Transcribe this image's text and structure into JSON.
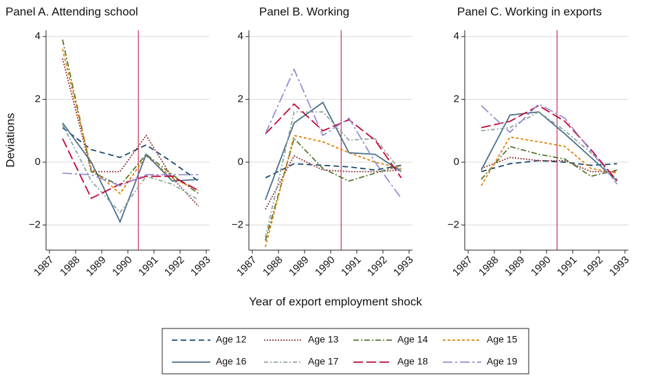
{
  "chart_data": [
    {
      "type": "line",
      "title": "Panel A. Attending school",
      "ylabel": "Deviations",
      "x": [
        1987.5,
        1988.6,
        1989.7,
        1990.7,
        1991.7,
        1992.7
      ],
      "xlim": [
        1987,
        1993
      ],
      "xticks": [
        1987,
        1988,
        1989,
        1990,
        1991,
        1992,
        1993
      ],
      "ylim": [
        -2.8,
        4.2
      ],
      "yticks": [
        {
          "value": -2,
          "label": "−2"
        },
        0,
        2,
        4
      ],
      "grid": true,
      "vline": 1990.4,
      "vline_color": "#c10534",
      "series": [
        {
          "name": "Age 12",
          "color": "#1a476f",
          "dash": "8,5",
          "values": [
            1.1,
            0.4,
            0.15,
            0.55,
            0.0,
            -0.6
          ]
        },
        {
          "name": "Age 13",
          "color": "#90353b",
          "dash": "2,2",
          "values": [
            3.3,
            -0.3,
            -0.3,
            0.85,
            -0.5,
            -1.4
          ]
        },
        {
          "name": "Age 14",
          "color": "#55752f",
          "dash": "8,3,2,3",
          "values": [
            3.9,
            -0.3,
            -0.75,
            0.25,
            -0.4,
            -1.0
          ]
        },
        {
          "name": "Age 15",
          "color": "#e37e00",
          "dash": "4,3",
          "values": [
            3.6,
            -0.2,
            -1.0,
            0.2,
            -0.5,
            -0.9
          ]
        },
        {
          "name": "Age 16",
          "color": "#4a6f8a",
          "dash": "none",
          "values": [
            1.25,
            0.0,
            -1.9,
            0.25,
            -0.6,
            -0.55
          ]
        },
        {
          "name": "Age 17",
          "color": "#8fa39a",
          "dash": "6,3,2,3",
          "values": [
            1.2,
            -0.6,
            -1.6,
            -0.45,
            -0.7,
            -1.2
          ]
        },
        {
          "name": "Age 18",
          "color": "#c10534",
          "dash": "14,5",
          "values": [
            0.75,
            -1.15,
            -0.7,
            -0.45,
            -0.45,
            -0.9
          ]
        },
        {
          "name": "Age 19",
          "color": "#938dd2",
          "dash": "14,4,3,4",
          "values": [
            -0.35,
            -0.4,
            -0.75,
            -0.4,
            -0.4,
            -0.4
          ]
        }
      ]
    },
    {
      "type": "line",
      "title": "Panel B. Working",
      "xlabel": "Year of export employment shock",
      "x": [
        1987.5,
        1988.6,
        1989.7,
        1990.7,
        1991.7,
        1992.7
      ],
      "xlim": [
        1987,
        1993
      ],
      "xticks": [
        1987,
        1988,
        1989,
        1990,
        1991,
        1992,
        1993
      ],
      "ylim": [
        -2.8,
        4.2
      ],
      "yticks": [
        {
          "value": -2,
          "label": "−2"
        },
        0,
        2,
        4
      ],
      "grid": true,
      "vline": 1990.4,
      "vline_color": "#c10534",
      "series": [
        {
          "name": "Age 12",
          "color": "#1a476f",
          "dash": "8,5",
          "values": [
            -0.5,
            -0.05,
            -0.1,
            -0.15,
            -0.25,
            -0.1
          ]
        },
        {
          "name": "Age 13",
          "color": "#90353b",
          "dash": "2,2",
          "values": [
            -1.5,
            0.2,
            -0.25,
            -0.3,
            -0.3,
            -0.25
          ]
        },
        {
          "name": "Age 14",
          "color": "#55752f",
          "dash": "8,3,2,3",
          "values": [
            -2.5,
            0.75,
            -0.2,
            -0.6,
            -0.35,
            -0.1
          ]
        },
        {
          "name": "Age 15",
          "color": "#e37e00",
          "dash": "4,3",
          "values": [
            -2.7,
            0.85,
            0.65,
            0.3,
            0.0,
            -0.2
          ]
        },
        {
          "name": "Age 16",
          "color": "#4a6f8a",
          "dash": "none",
          "values": [
            -1.2,
            1.25,
            1.9,
            0.3,
            0.25,
            -0.3
          ]
        },
        {
          "name": "Age 17",
          "color": "#8fa39a",
          "dash": "6,3,2,3",
          "values": [
            -2.4,
            1.6,
            1.6,
            0.7,
            0.75,
            -0.3
          ]
        },
        {
          "name": "Age 18",
          "color": "#c10534",
          "dash": "14,5",
          "values": [
            0.9,
            1.85,
            1.0,
            1.35,
            0.7,
            -0.5
          ]
        },
        {
          "name": "Age 19",
          "color": "#938dd2",
          "dash": "14,4,3,4",
          "values": [
            0.9,
            2.95,
            0.85,
            1.4,
            0.0,
            -1.15
          ]
        }
      ]
    },
    {
      "type": "line",
      "title": "Panel C. Working in exports",
      "x": [
        1987.5,
        1988.6,
        1989.7,
        1990.7,
        1991.7,
        1992.7
      ],
      "xlim": [
        1987,
        1993
      ],
      "xticks": [
        1987,
        1988,
        1989,
        1990,
        1991,
        1992,
        1993
      ],
      "ylim": [
        -2.8,
        4.2
      ],
      "yticks": [
        {
          "value": -2,
          "label": "−2"
        },
        0,
        2,
        4
      ],
      "grid": true,
      "vline": 1990.4,
      "vline_color": "#c10534",
      "series": [
        {
          "name": "Age 12",
          "color": "#1a476f",
          "dash": "8,5",
          "values": [
            -0.3,
            -0.05,
            0.05,
            0.0,
            -0.1,
            -0.05
          ]
        },
        {
          "name": "Age 13",
          "color": "#90353b",
          "dash": "2,2",
          "values": [
            -0.2,
            0.15,
            0.05,
            0.05,
            -0.3,
            -0.3
          ]
        },
        {
          "name": "Age 14",
          "color": "#55752f",
          "dash": "8,3,2,3",
          "values": [
            -0.55,
            0.5,
            0.25,
            0.1,
            -0.45,
            -0.25
          ]
        },
        {
          "name": "Age 15",
          "color": "#e37e00",
          "dash": "4,3",
          "values": [
            -0.75,
            0.8,
            0.65,
            0.5,
            -0.2,
            -0.35
          ]
        },
        {
          "name": "Age 16",
          "color": "#4a6f8a",
          "dash": "none",
          "values": [
            -0.25,
            1.5,
            1.6,
            0.9,
            0.15,
            -0.6
          ]
        },
        {
          "name": "Age 17",
          "color": "#8fa39a",
          "dash": "6,3,2,3",
          "values": [
            1.0,
            1.1,
            1.6,
            1.0,
            0.3,
            -0.55
          ]
        },
        {
          "name": "Age 18",
          "color": "#c10534",
          "dash": "14,5",
          "values": [
            1.1,
            1.3,
            1.8,
            1.3,
            0.4,
            -0.6
          ]
        },
        {
          "name": "Age 19",
          "color": "#938dd2",
          "dash": "14,4,3,4",
          "values": [
            1.8,
            0.95,
            1.85,
            1.4,
            0.35,
            -0.7
          ]
        }
      ]
    }
  ]
}
